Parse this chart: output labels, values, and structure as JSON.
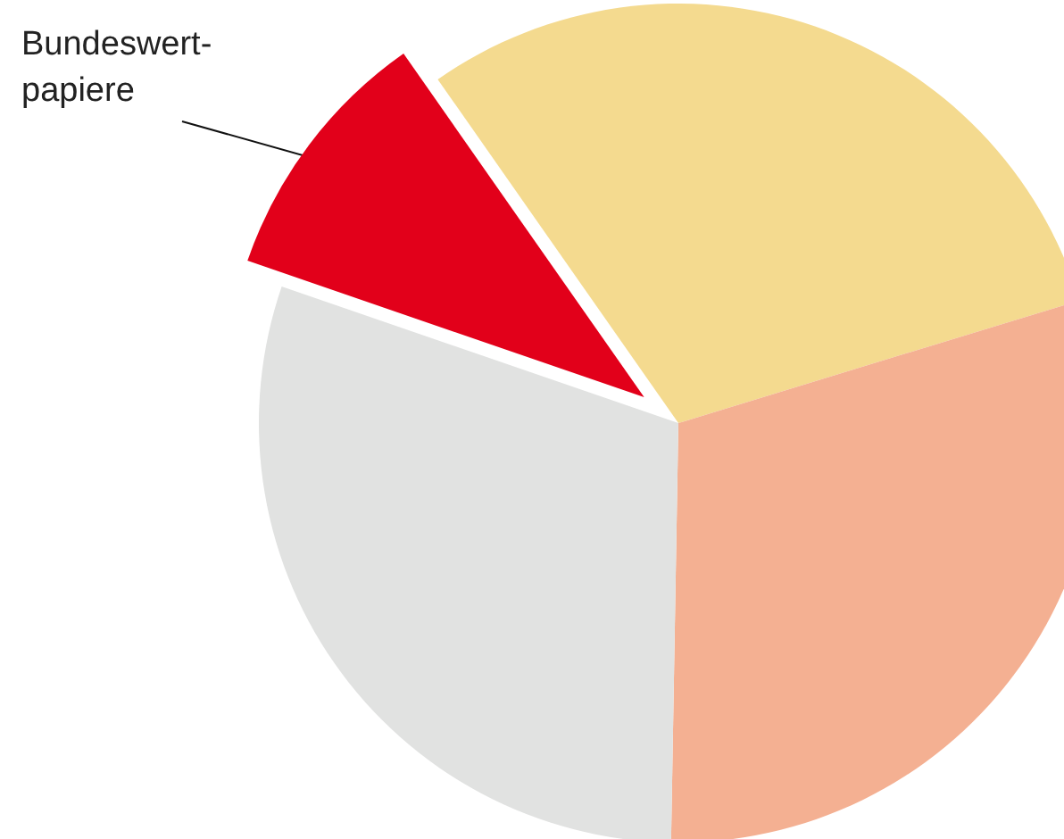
{
  "chart_data": {
    "type": "pie",
    "categories": [
      null,
      null,
      null,
      "Bundeswert-\npapiere"
    ],
    "values": [
      30,
      30,
      30,
      10
    ],
    "colors": [
      "#f4da8f",
      "#f4b092",
      "#e1e2e1",
      "#e2001a"
    ]
  }
}
